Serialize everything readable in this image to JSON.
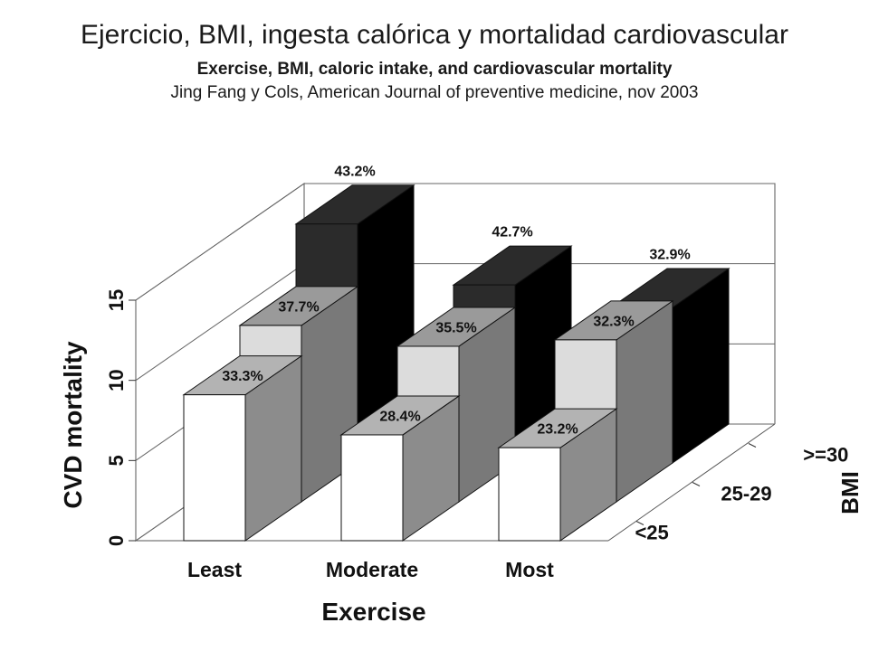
{
  "chart_data": {
    "type": "bar3d",
    "title": "Ejercicio, BMI, ingesta calórica y mortalidad cardiovascular",
    "subtitle": "Exercise,  BMI, caloric intake, and cardiovascular mortality",
    "source": "Jing Fang y Cols,  American Journal of preventive medicine,  nov 2003",
    "x_label": "Exercise",
    "y_label": "CVD mortality",
    "z_label": "BMI",
    "categories": [
      "Least",
      "Moderate",
      "Most"
    ],
    "ylim": [
      0,
      15
    ],
    "yticks": [
      0,
      5,
      10,
      15
    ],
    "grid": true,
    "series": [
      {
        "name": "<25",
        "color": "#ffffff",
        "values": [
          9.1,
          6.6,
          5.8
        ],
        "bar_labels": [
          "33.3%",
          "28.4%",
          "23.2%"
        ]
      },
      {
        "name": "25-29",
        "color": "#dcdcdc",
        "values": [
          11.0,
          9.7,
          10.1
        ],
        "bar_labels": [
          "37.7%",
          "35.5%",
          "32.3%"
        ]
      },
      {
        "name": ">=30",
        "color": "#2b2b2b",
        "values": [
          14.9,
          11.1,
          9.7
        ],
        "bar_labels": [
          "43.2%",
          "42.7%",
          "32.9%"
        ]
      }
    ]
  }
}
